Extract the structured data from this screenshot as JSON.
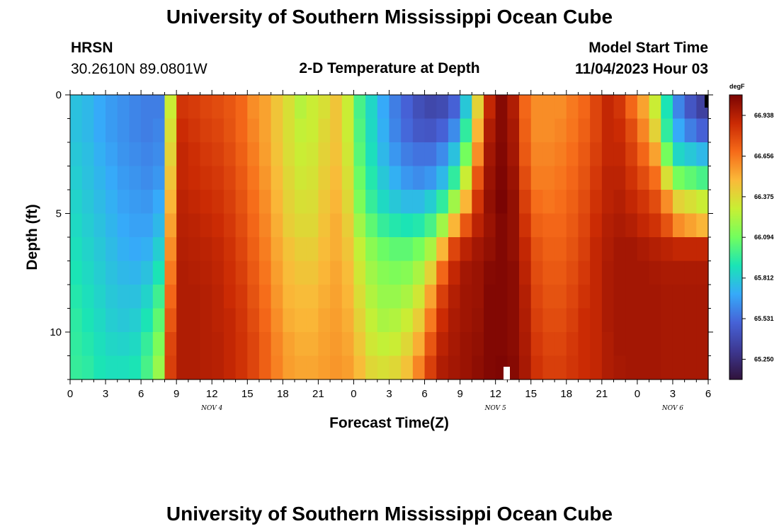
{
  "page": {
    "title_top": "University of Southern Mississippi Ocean Cube",
    "title_bottom": "University of Southern Mississippi Ocean Cube"
  },
  "header": {
    "station": "HRSN",
    "coords": "30.2610N  89.0801W",
    "plot_title": "2-D Temperature at Depth",
    "model_label": "Model Start Time",
    "model_time": "11/04/2023 Hour 03"
  },
  "chart_data": {
    "type": "heatmap",
    "title": "2-D Temperature at Depth",
    "xlabel": "Forecast Time(Z)",
    "ylabel": "Depth (ft)",
    "units": "degF",
    "x_hours_range": [
      0,
      54
    ],
    "y_range": [
      0,
      12
    ],
    "x_ticks": [
      {
        "hour": 0,
        "label": "0"
      },
      {
        "hour": 3,
        "label": "3"
      },
      {
        "hour": 6,
        "label": "6"
      },
      {
        "hour": 9,
        "label": "9"
      },
      {
        "hour": 12,
        "label": "12"
      },
      {
        "hour": 15,
        "label": "15"
      },
      {
        "hour": 18,
        "label": "18"
      },
      {
        "hour": 21,
        "label": "21"
      },
      {
        "hour": 24,
        "label": "0"
      },
      {
        "hour": 27,
        "label": "3"
      },
      {
        "hour": 30,
        "label": "6"
      },
      {
        "hour": 33,
        "label": "9"
      },
      {
        "hour": 36,
        "label": "12"
      },
      {
        "hour": 39,
        "label": "15"
      },
      {
        "hour": 42,
        "label": "18"
      },
      {
        "hour": 45,
        "label": "21"
      },
      {
        "hour": 48,
        "label": "0"
      },
      {
        "hour": 51,
        "label": "3"
      },
      {
        "hour": 54,
        "label": "6"
      }
    ],
    "day_labels": [
      {
        "hour": 12,
        "label": "NOV 4"
      },
      {
        "hour": 36,
        "label": "NOV 5"
      },
      {
        "hour": 51,
        "label": "NOV 6"
      }
    ],
    "y_ticks": [
      {
        "value": 0,
        "label": "0"
      },
      {
        "value": 5,
        "label": "5"
      },
      {
        "value": 10,
        "label": "10"
      }
    ],
    "colorbar": {
      "unit_label": "degF",
      "min": 65.11,
      "max": 67.08,
      "labels": [
        "66.938",
        "66.656",
        "66.375",
        "66.094",
        "65.812",
        "65.531",
        "65.250"
      ],
      "stops": [
        "#30123b",
        "#3d3891",
        "#4662d7",
        "#36aaf9",
        "#1ae4b6",
        "#72fe5e",
        "#c8ef34",
        "#faba39",
        "#f66b19",
        "#ca2a04",
        "#7a0403"
      ]
    },
    "depth_levels_ft": [
      0,
      1,
      2,
      3,
      4,
      5,
      6,
      7,
      8,
      9,
      10,
      11
    ],
    "time_step_hours": 1,
    "values_degF": [
      [
        65.78,
        65.75,
        65.7,
        65.66,
        65.63,
        65.6,
        65.58,
        65.58,
        66.3,
        66.85,
        66.83,
        66.8,
        66.78,
        66.75,
        66.7,
        66.6,
        66.55,
        66.45,
        66.35,
        66.25,
        66.3,
        66.35,
        66.45,
        66.3,
        66.0,
        65.85,
        65.7,
        65.58,
        65.5,
        65.42,
        65.38,
        65.4,
        65.5,
        65.8,
        66.4,
        66.9,
        67.05,
        66.95,
        66.7,
        66.6,
        66.6,
        66.6,
        66.65,
        66.7,
        66.8,
        66.9,
        66.85,
        66.7,
        66.55,
        66.3,
        65.9,
        65.6,
        65.45,
        65.35,
        65.3
      ],
      [
        65.78,
        65.75,
        65.7,
        65.66,
        65.63,
        65.6,
        65.58,
        65.6,
        66.35,
        66.88,
        66.85,
        66.82,
        66.8,
        66.76,
        66.7,
        66.62,
        66.55,
        66.45,
        66.35,
        66.28,
        66.3,
        66.38,
        66.45,
        66.3,
        66.02,
        65.86,
        65.72,
        65.6,
        65.52,
        65.46,
        65.45,
        65.5,
        65.62,
        65.95,
        66.5,
        66.95,
        67.05,
        66.97,
        66.72,
        66.6,
        66.6,
        66.62,
        66.66,
        66.72,
        66.8,
        66.9,
        66.88,
        66.78,
        66.62,
        66.4,
        65.95,
        65.7,
        65.58,
        65.5,
        65.48
      ],
      [
        65.8,
        65.77,
        65.72,
        65.68,
        65.64,
        65.62,
        65.6,
        65.62,
        66.4,
        66.9,
        66.87,
        66.84,
        66.82,
        66.78,
        66.72,
        66.64,
        66.56,
        66.46,
        66.36,
        66.3,
        66.32,
        66.4,
        66.46,
        66.32,
        66.04,
        65.88,
        65.75,
        65.65,
        65.58,
        65.55,
        65.55,
        65.62,
        65.78,
        66.1,
        66.6,
        66.98,
        67.06,
        66.98,
        66.74,
        66.62,
        66.62,
        66.64,
        66.68,
        66.74,
        66.82,
        66.9,
        66.9,
        66.82,
        66.7,
        66.55,
        66.1,
        65.85,
        65.8,
        65.75,
        65.72
      ],
      [
        65.82,
        65.78,
        65.74,
        65.7,
        65.66,
        65.64,
        65.62,
        65.65,
        66.45,
        66.9,
        66.88,
        66.86,
        66.84,
        66.8,
        66.74,
        66.66,
        66.58,
        66.48,
        66.38,
        66.32,
        66.34,
        66.42,
        66.48,
        66.35,
        66.08,
        65.92,
        65.8,
        65.72,
        65.65,
        65.62,
        65.65,
        65.75,
        65.95,
        66.3,
        66.75,
        67.0,
        67.07,
        67.0,
        66.78,
        66.64,
        66.64,
        66.66,
        66.7,
        66.76,
        66.84,
        66.92,
        66.92,
        66.86,
        66.78,
        66.68,
        66.35,
        66.1,
        66.05,
        66.0,
        66.0
      ],
      [
        65.84,
        65.8,
        65.76,
        65.72,
        65.68,
        65.66,
        65.65,
        65.7,
        66.5,
        66.92,
        66.9,
        66.88,
        66.86,
        66.82,
        66.76,
        66.68,
        66.6,
        66.5,
        66.4,
        66.35,
        66.36,
        66.44,
        66.5,
        66.38,
        66.12,
        65.96,
        65.86,
        65.8,
        65.76,
        65.76,
        65.82,
        65.95,
        66.2,
        66.5,
        66.85,
        67.02,
        67.08,
        67.02,
        66.82,
        66.68,
        66.66,
        66.68,
        66.72,
        66.78,
        66.86,
        66.92,
        66.94,
        66.9,
        66.85,
        66.78,
        66.6,
        66.4,
        66.35,
        66.3,
        66.3
      ],
      [
        65.86,
        65.82,
        65.78,
        65.74,
        65.7,
        65.68,
        65.68,
        65.75,
        66.55,
        66.93,
        66.92,
        66.9,
        66.88,
        66.84,
        66.78,
        66.7,
        66.62,
        66.52,
        66.42,
        66.38,
        66.38,
        66.46,
        66.52,
        66.42,
        66.2,
        66.05,
        65.96,
        65.92,
        65.9,
        65.92,
        66.0,
        66.2,
        66.5,
        66.75,
        66.92,
        67.0,
        67.06,
        67.02,
        66.86,
        66.72,
        66.7,
        66.7,
        66.74,
        66.8,
        66.88,
        66.94,
        66.96,
        66.94,
        66.9,
        66.86,
        66.76,
        66.6,
        66.55,
        66.5,
        66.5
      ],
      [
        65.88,
        65.84,
        65.8,
        65.76,
        65.72,
        65.7,
        65.72,
        65.82,
        66.6,
        66.94,
        66.93,
        66.92,
        66.9,
        66.86,
        66.8,
        66.72,
        66.64,
        66.54,
        66.46,
        66.42,
        66.42,
        66.48,
        66.52,
        66.45,
        66.28,
        66.15,
        66.08,
        66.05,
        66.05,
        66.1,
        66.22,
        66.5,
        66.8,
        66.92,
        66.98,
        67.02,
        67.06,
        67.02,
        66.9,
        66.76,
        66.72,
        66.72,
        66.76,
        66.82,
        66.9,
        66.95,
        66.98,
        66.98,
        66.96,
        66.94,
        66.92,
        66.9,
        66.9,
        66.9,
        66.9
      ],
      [
        65.9,
        65.86,
        65.82,
        65.78,
        65.75,
        65.74,
        65.78,
        65.9,
        66.65,
        66.95,
        66.94,
        66.93,
        66.91,
        66.87,
        66.82,
        66.74,
        66.66,
        66.56,
        66.48,
        66.45,
        66.45,
        66.5,
        66.54,
        66.48,
        66.32,
        66.2,
        66.14,
        66.12,
        66.14,
        66.22,
        66.4,
        66.7,
        66.9,
        66.98,
        67.0,
        67.05,
        67.06,
        67.04,
        66.92,
        66.78,
        66.74,
        66.74,
        66.78,
        66.84,
        66.9,
        66.96,
        66.98,
        66.98,
        66.98,
        66.97,
        66.96,
        66.96,
        66.96,
        66.96,
        66.96
      ],
      [
        65.92,
        65.88,
        65.84,
        65.8,
        65.78,
        65.78,
        65.84,
        65.98,
        66.7,
        66.95,
        66.95,
        66.94,
        66.92,
        66.88,
        66.84,
        66.76,
        66.68,
        66.58,
        66.5,
        66.48,
        66.48,
        66.52,
        66.55,
        66.5,
        66.36,
        66.24,
        66.18,
        66.18,
        66.22,
        66.32,
        66.55,
        66.82,
        66.94,
        66.99,
        67.0,
        67.06,
        67.06,
        67.04,
        66.94,
        66.8,
        66.76,
        66.76,
        66.8,
        66.86,
        66.9,
        66.96,
        66.98,
        66.98,
        66.98,
        66.98,
        66.97,
        66.97,
        66.97,
        66.97,
        66.97
      ],
      [
        65.94,
        65.9,
        65.86,
        65.82,
        65.8,
        65.82,
        65.9,
        66.05,
        66.75,
        66.95,
        66.95,
        66.94,
        66.92,
        66.9,
        66.85,
        66.78,
        66.7,
        66.6,
        66.52,
        66.5,
        66.5,
        66.54,
        66.56,
        66.52,
        66.4,
        66.28,
        66.22,
        66.24,
        66.3,
        66.42,
        66.65,
        66.88,
        66.96,
        66.99,
        67.01,
        67.06,
        67.06,
        67.04,
        66.95,
        66.82,
        66.78,
        66.78,
        66.82,
        66.88,
        66.9,
        66.96,
        66.98,
        66.98,
        66.98,
        66.98,
        66.97,
        66.97,
        66.97,
        66.97,
        66.97
      ],
      [
        65.95,
        65.92,
        65.88,
        65.85,
        65.84,
        65.86,
        65.96,
        66.12,
        66.8,
        66.95,
        66.95,
        66.94,
        66.93,
        66.9,
        66.86,
        66.8,
        66.72,
        66.62,
        66.55,
        66.52,
        66.52,
        66.55,
        66.57,
        66.54,
        66.44,
        66.32,
        66.28,
        66.3,
        66.38,
        66.52,
        66.75,
        66.92,
        66.97,
        67.0,
        67.02,
        67.06,
        67.06,
        67.04,
        66.96,
        66.84,
        66.8,
        66.8,
        66.84,
        66.88,
        66.9,
        66.95,
        66.98,
        66.98,
        66.98,
        66.98,
        66.97,
        66.97,
        66.97,
        66.97,
        66.97
      ],
      [
        65.96,
        65.94,
        65.9,
        65.88,
        65.88,
        65.9,
        66.0,
        66.18,
        66.82,
        66.95,
        66.95,
        66.94,
        66.93,
        66.9,
        66.86,
        66.8,
        66.72,
        66.63,
        66.56,
        66.54,
        66.54,
        66.56,
        66.58,
        66.56,
        66.48,
        66.38,
        66.35,
        66.38,
        66.46,
        66.62,
        66.82,
        66.95,
        66.98,
        67.0,
        67.03,
        67.06,
        67.07,
        67.05,
        66.97,
        66.86,
        66.82,
        66.82,
        66.85,
        66.88,
        66.9,
        66.95,
        66.97,
        66.98,
        66.98,
        66.98,
        66.97,
        66.97,
        66.97,
        66.97,
        66.97
      ]
    ]
  }
}
